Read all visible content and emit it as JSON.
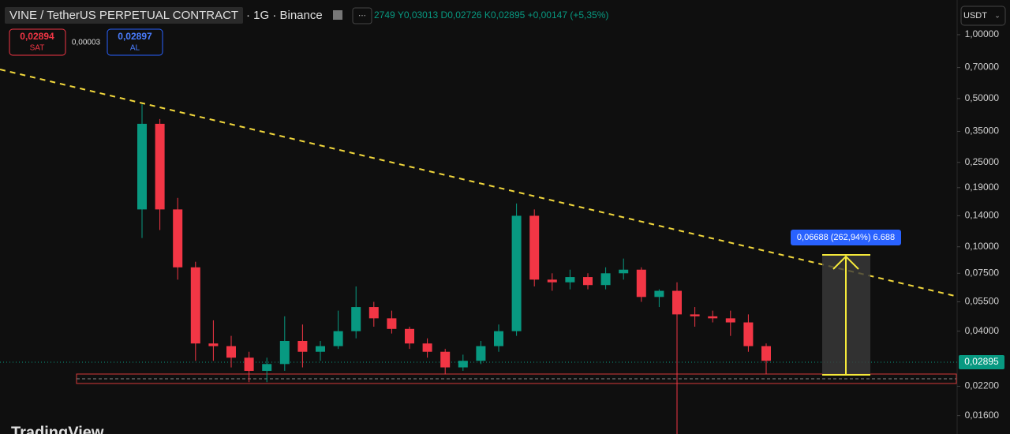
{
  "header": {
    "title": "VINE / TetherUS PERPETUAL CONTRACT",
    "interval": "· 1G · Binance",
    "ohlc": "2749 Y0,03013 D0,02726 K0,02895 +0,00147 (+5,35%)"
  },
  "trade": {
    "sell_price": "0,02894",
    "sell_label": "SAT",
    "spread": "0,00003",
    "buy_price": "0,02897",
    "buy_label": "AL"
  },
  "currency": "USDT",
  "price_tag": "0,02895",
  "measure_label": "0,06688 (262,94%) 6.688",
  "logo": "TradingView",
  "chart": {
    "type": "candlestick",
    "log_scale": true,
    "up_color": "#089981",
    "down_color": "#f23645",
    "ylim": [
      0.0131,
      1.457
    ],
    "yticks": [
      {
        "value": 1,
        "label": "1,00000"
      },
      {
        "value": 0.7,
        "label": "0,70000"
      },
      {
        "value": 0.5,
        "label": "0,50000"
      },
      {
        "value": 0.35,
        "label": "0,35000"
      },
      {
        "value": 0.25,
        "label": "0,25000"
      },
      {
        "value": 0.19,
        "label": "0,19000"
      },
      {
        "value": 0.14,
        "label": "0,14000"
      },
      {
        "value": 0.1,
        "label": "0,10000"
      },
      {
        "value": 0.075,
        "label": "0,07500"
      },
      {
        "value": 0.055,
        "label": "0,05500"
      },
      {
        "value": 0.04,
        "label": "0,04000"
      },
      {
        "value": 0.022,
        "label": "0,02200"
      },
      {
        "value": 0.016,
        "label": "0,01600"
      }
    ],
    "open": [
      0.15,
      0.38,
      0.15,
      0.08,
      0.035,
      0.034,
      0.03,
      0.026,
      0.028,
      0.036,
      0.032,
      0.034,
      0.04,
      0.052,
      0.046,
      0.041,
      0.035,
      0.032,
      0.027,
      0.029,
      0.034,
      0.04,
      0.14,
      0.07,
      0.068,
      0.072,
      0.066,
      0.075,
      0.078,
      0.058,
      0.062,
      0.048,
      0.047,
      0.046,
      0.044,
      0.034
    ],
    "high": [
      0.47,
      0.4,
      0.17,
      0.085,
      0.045,
      0.038,
      0.032,
      0.03,
      0.047,
      0.043,
      0.036,
      0.05,
      0.065,
      0.055,
      0.05,
      0.042,
      0.037,
      0.033,
      0.031,
      0.036,
      0.043,
      0.16,
      0.15,
      0.075,
      0.078,
      0.075,
      0.08,
      0.088,
      0.08,
      0.063,
      0.068,
      0.052,
      0.05,
      0.05,
      0.048,
      0.035
    ],
    "low": [
      0.11,
      0.12,
      0.07,
      0.029,
      0.029,
      0.027,
      0.023,
      0.023,
      0.026,
      0.027,
      0.029,
      0.033,
      0.037,
      0.042,
      0.039,
      0.033,
      0.03,
      0.025,
      0.026,
      0.028,
      0.032,
      0.038,
      0.065,
      0.062,
      0.063,
      0.063,
      0.063,
      0.07,
      0.055,
      0.052,
      0.012,
      0.042,
      0.044,
      0.038,
      0.032,
      0.025
    ],
    "close": [
      0.38,
      0.15,
      0.08,
      0.035,
      0.034,
      0.03,
      0.026,
      0.028,
      0.036,
      0.032,
      0.034,
      0.04,
      0.052,
      0.046,
      0.041,
      0.035,
      0.032,
      0.027,
      0.029,
      0.034,
      0.04,
      0.14,
      0.07,
      0.068,
      0.072,
      0.066,
      0.075,
      0.078,
      0.058,
      0.062,
      0.048,
      0.047,
      0.046,
      0.044,
      0.034,
      0.029
    ]
  }
}
